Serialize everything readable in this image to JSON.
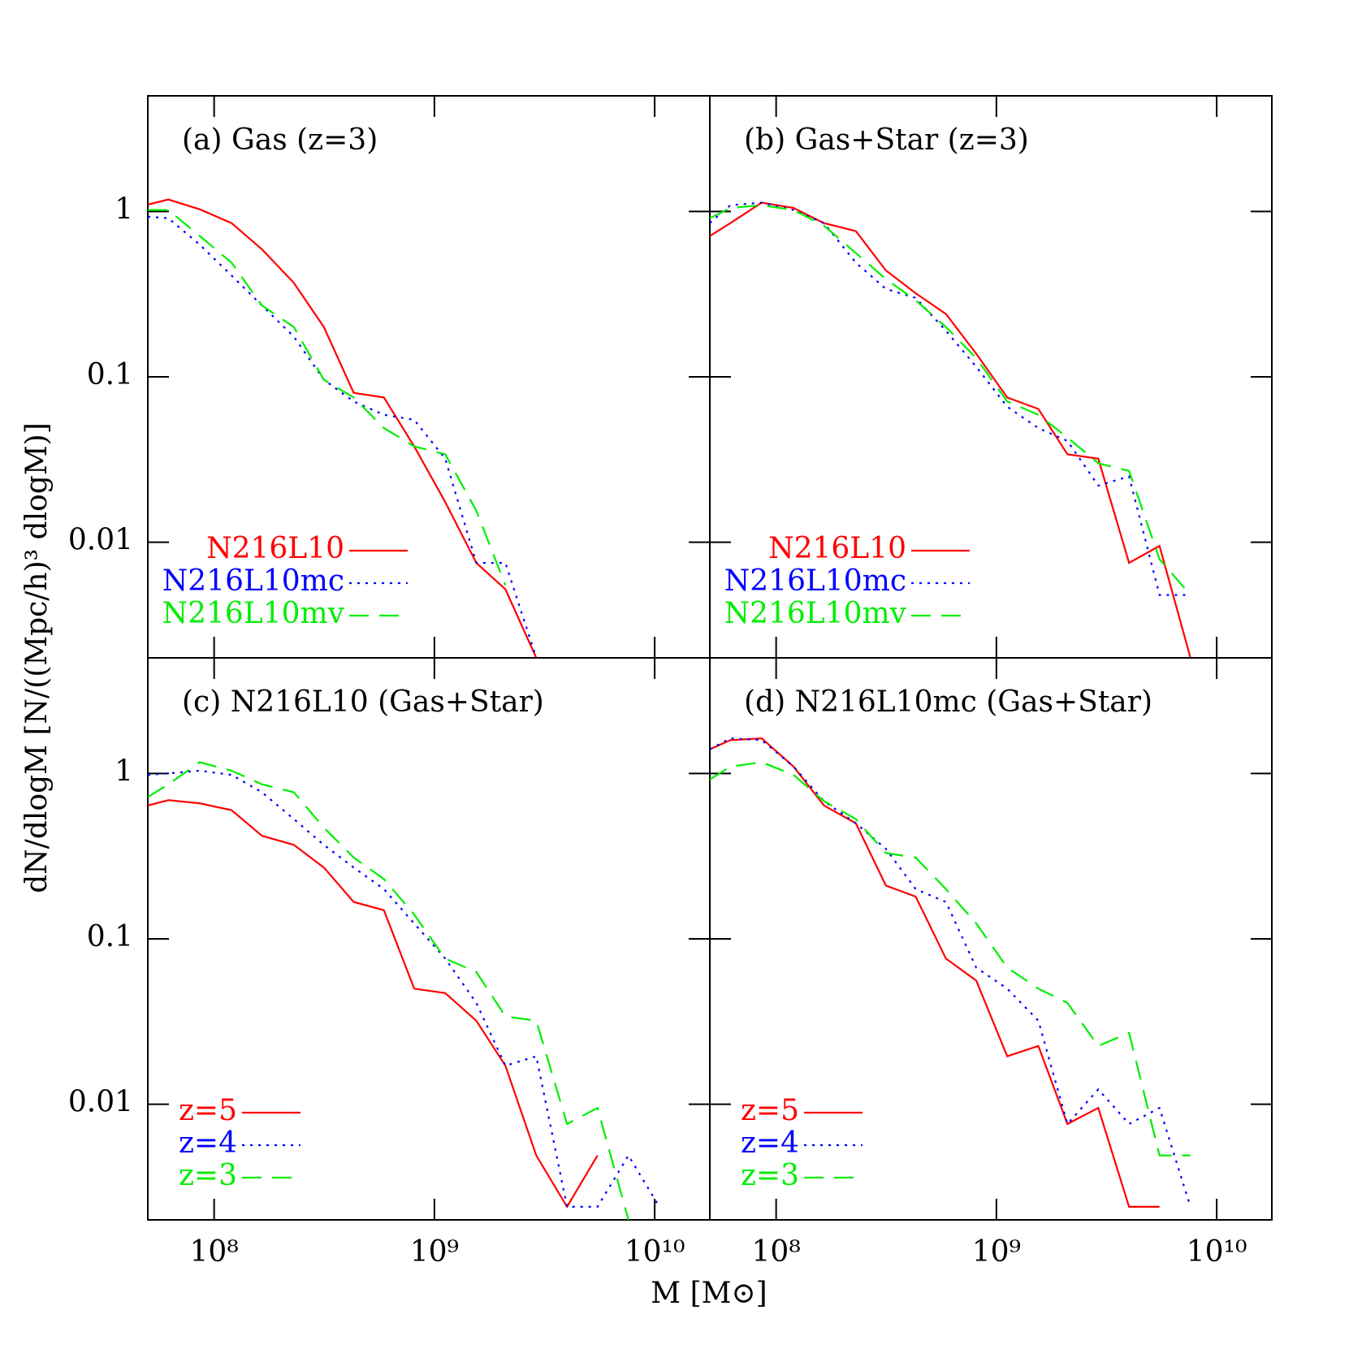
{
  "x_label": "M [M⊙]",
  "y_label": "dN/dlogM [N/((Mpc/h)³ dlogM)]",
  "chart_data": [
    {
      "type": "line",
      "title": "(a)  Gas  (z=3)",
      "xscale": "log",
      "yscale": "log",
      "xlim": [
        50000000,
        17800000000
      ],
      "ylim": [
        0.002,
        5
      ],
      "xticks": [
        100000000,
        1000000000,
        10000000000
      ],
      "yticks": [
        0.01,
        0.1,
        1
      ],
      "show_xtick_labels": false,
      "show_ytick_labels": true,
      "legend": "right",
      "x": [
        50000000,
        62000000,
        86000000,
        120000000,
        165000000,
        230000000,
        315000000,
        430000000,
        590000000,
        810000000,
        1120000000,
        1550000000,
        2100000000,
        2900000000,
        4000000000,
        5500000000,
        7600000000,
        10500000000
      ],
      "series": [
        {
          "name": "N216L10",
          "color": "#ff0000",
          "linestyle": "solid",
          "values": [
            1.1,
            1.18,
            1.03,
            0.85,
            0.59,
            0.37,
            0.2,
            0.08,
            0.075,
            0.038,
            0.0175,
            0.0075,
            0.0052,
            0.002,
            null,
            null,
            null,
            null
          ]
        },
        {
          "name": "N216L10mc",
          "color": "#0000ff",
          "linestyle": "dotted",
          "values": [
            0.93,
            0.91,
            0.63,
            0.41,
            0.27,
            0.175,
            0.096,
            0.071,
            0.059,
            0.055,
            0.032,
            0.0075,
            0.0075,
            0.002,
            null,
            null,
            null,
            null
          ]
        },
        {
          "name": "N216L10mv",
          "color": "#00ee00",
          "linestyle": "dashed",
          "values": [
            1.02,
            1.02,
            0.71,
            0.49,
            0.27,
            0.2,
            0.096,
            0.075,
            0.049,
            0.038,
            0.034,
            0.0155,
            0.0055,
            null,
            null,
            null,
            null,
            null
          ]
        }
      ]
    },
    {
      "type": "line",
      "title": "(b)  Gas+Star  (z=3)",
      "xscale": "log",
      "yscale": "log",
      "xlim": [
        50000000,
        17800000000
      ],
      "ylim": [
        0.002,
        5
      ],
      "xticks": [
        100000000,
        1000000000,
        10000000000
      ],
      "yticks": [
        0.01,
        0.1,
        1
      ],
      "show_xtick_labels": false,
      "show_ytick_labels": false,
      "legend": "right",
      "x": [
        50000000,
        62000000,
        86000000,
        120000000,
        165000000,
        230000000,
        315000000,
        430000000,
        590000000,
        810000000,
        1120000000,
        1550000000,
        2100000000,
        2900000000,
        4000000000,
        5500000000,
        7600000000,
        10500000000
      ],
      "series": [
        {
          "name": "N216L10",
          "color": "#ff0000",
          "linestyle": "solid",
          "values": [
            0.71,
            0.85,
            1.13,
            1.05,
            0.85,
            0.76,
            0.44,
            0.32,
            0.24,
            0.138,
            0.075,
            0.064,
            0.034,
            0.032,
            0.0075,
            0.0095,
            0.002,
            null
          ]
        },
        {
          "name": "N216L10mc",
          "color": "#0000ff",
          "linestyle": "dotted",
          "values": [
            0.85,
            1.09,
            1.13,
            1.02,
            0.85,
            0.49,
            0.34,
            0.3,
            0.19,
            0.115,
            0.066,
            0.049,
            0.041,
            0.022,
            0.025,
            0.0048,
            0.0048,
            null
          ]
        },
        {
          "name": "N216L10mv",
          "color": "#00ee00",
          "linestyle": "dashed",
          "values": [
            0.91,
            1.05,
            1.09,
            1.02,
            0.82,
            0.56,
            0.39,
            0.29,
            0.2,
            0.13,
            0.071,
            0.059,
            0.043,
            0.03,
            0.027,
            0.0079,
            0.0048,
            null
          ]
        }
      ]
    },
    {
      "type": "line",
      "title": "(c)  N216L10  (Gas+Star)",
      "xscale": "log",
      "yscale": "log",
      "xlim": [
        50000000,
        17800000000
      ],
      "ylim": [
        0.002,
        5
      ],
      "xticks": [
        {
          "value": 100000000,
          "label": "10⁸"
        },
        {
          "value": 1000000000,
          "label": "10⁹"
        },
        {
          "value": 10000000000,
          "label": "10¹⁰"
        }
      ],
      "yticks": [
        0.01,
        0.1,
        1
      ],
      "show_xtick_labels": true,
      "show_ytick_labels": true,
      "legend": "left",
      "x": [
        50000000,
        62000000,
        86000000,
        120000000,
        165000000,
        230000000,
        315000000,
        430000000,
        590000000,
        810000000,
        1120000000,
        1550000000,
        2100000000,
        2900000000,
        4000000000,
        5500000000,
        7600000000,
        10500000000
      ],
      "series": [
        {
          "name": "z=5",
          "color": "#ff0000",
          "linestyle": "solid",
          "values": [
            0.64,
            0.69,
            0.66,
            0.6,
            0.42,
            0.37,
            0.27,
            0.167,
            0.149,
            0.05,
            0.047,
            0.032,
            0.0171,
            0.0049,
            0.0024,
            0.0049,
            null,
            null
          ]
        },
        {
          "name": "z=4",
          "color": "#0000ff",
          "linestyle": "dotted",
          "values": [
            0.98,
            1.0,
            1.04,
            0.98,
            0.77,
            0.53,
            0.37,
            0.27,
            0.2,
            0.124,
            0.076,
            0.041,
            0.0171,
            0.0195,
            0.0024,
            0.0024,
            0.0049,
            0.0024
          ]
        },
        {
          "name": "z=3",
          "color": "#00ee00",
          "linestyle": "dashed",
          "values": [
            0.72,
            0.86,
            1.17,
            1.04,
            0.86,
            0.77,
            0.47,
            0.31,
            0.23,
            0.14,
            0.076,
            0.063,
            0.034,
            0.032,
            0.0076,
            0.0095,
            0.002,
            null
          ]
        }
      ]
    },
    {
      "type": "line",
      "title": "(d)  N216L10mc  (Gas+Star)",
      "xscale": "log",
      "yscale": "log",
      "xlim": [
        50000000,
        17800000000
      ],
      "ylim": [
        0.002,
        5
      ],
      "xticks": [
        {
          "value": 100000000,
          "label": "10⁸"
        },
        {
          "value": 1000000000,
          "label": "10⁹"
        },
        {
          "value": 10000000000,
          "label": "10¹⁰"
        }
      ],
      "yticks": [
        0.01,
        0.1,
        1
      ],
      "show_xtick_labels": true,
      "show_ytick_labels": false,
      "legend": "left",
      "x": [
        50000000,
        62000000,
        86000000,
        120000000,
        165000000,
        230000000,
        315000000,
        430000000,
        590000000,
        810000000,
        1120000000,
        1550000000,
        2100000000,
        2900000000,
        4000000000,
        5500000000,
        7600000000,
        10500000000
      ],
      "series": [
        {
          "name": "z=5",
          "color": "#ff0000",
          "linestyle": "solid",
          "values": [
            1.4,
            1.59,
            1.63,
            1.1,
            0.64,
            0.5,
            0.21,
            0.18,
            0.076,
            0.056,
            0.0195,
            0.0225,
            0.0076,
            0.0095,
            0.0024,
            0.0024,
            null,
            null
          ]
        },
        {
          "name": "z=4",
          "color": "#0000ff",
          "linestyle": "dotted",
          "values": [
            1.4,
            1.63,
            1.59,
            1.1,
            0.68,
            0.5,
            0.35,
            0.2,
            0.167,
            0.067,
            0.05,
            0.032,
            0.0076,
            0.0123,
            0.0076,
            0.0095,
            0.0024,
            null
          ]
        },
        {
          "name": "z=3",
          "color": "#00ee00",
          "linestyle": "dashed",
          "values": [
            0.92,
            1.1,
            1.17,
            0.98,
            0.68,
            0.53,
            0.33,
            0.31,
            0.2,
            0.124,
            0.067,
            0.05,
            0.041,
            0.0225,
            0.027,
            0.0049,
            0.0049,
            null
          ]
        }
      ]
    }
  ]
}
